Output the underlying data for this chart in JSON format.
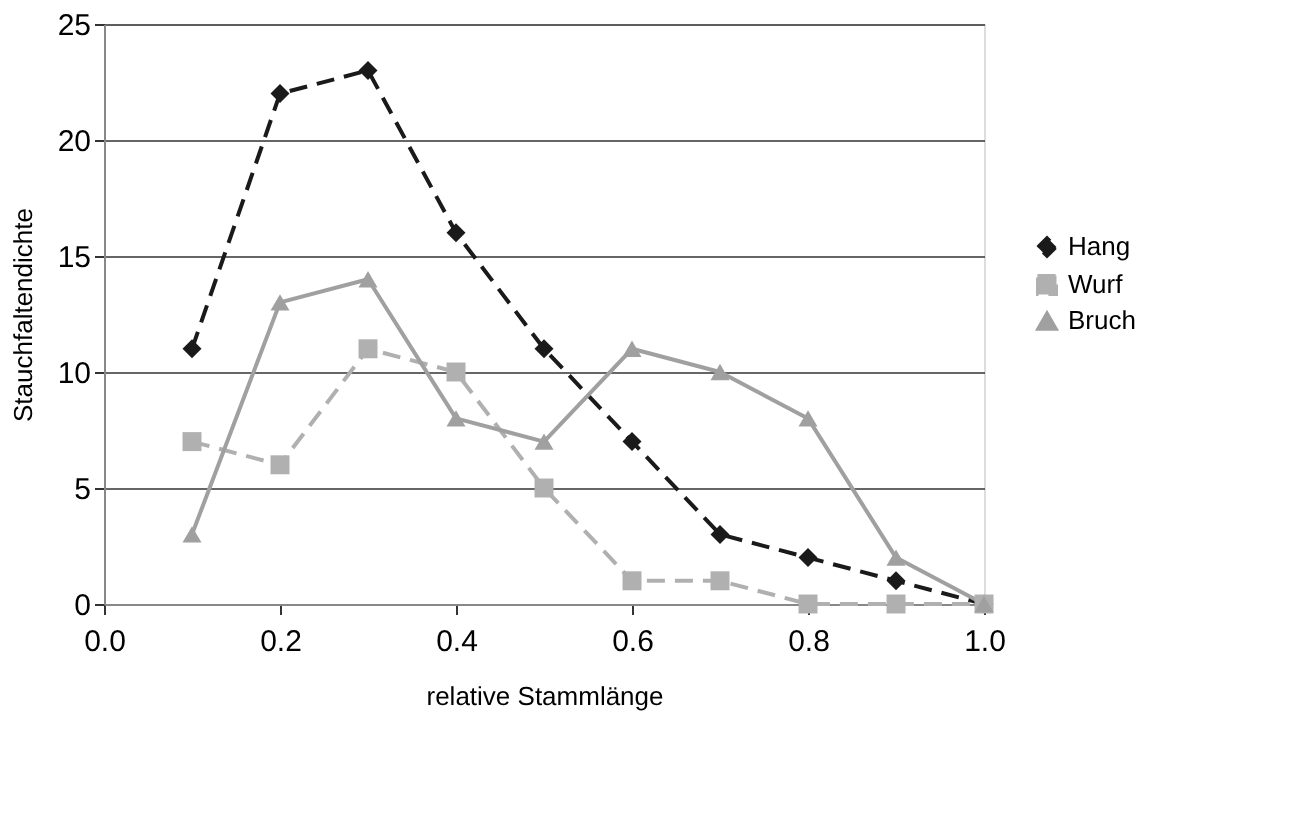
{
  "chart_data": {
    "type": "line",
    "xlabel": "relative Stammlänge",
    "ylabel": "Stauchfaltendichte",
    "x": [
      0.1,
      0.2,
      0.3,
      0.4,
      0.5,
      0.6,
      0.7,
      0.8,
      0.9,
      1.0
    ],
    "xlim": [
      0,
      1
    ],
    "xticks": [
      {
        "value": 0,
        "label": "0.0"
      },
      0.2,
      0.4,
      0.6,
      0.8,
      {
        "value": 1,
        "label": "1.0"
      }
    ],
    "ylim": [
      0,
      25
    ],
    "yticks": [
      0,
      5,
      10,
      15,
      20,
      25
    ],
    "grid": "y",
    "legend": "right",
    "series": [
      {
        "name": "Hang",
        "color": "#1a1a1a",
        "marker": "diamond",
        "line_style": "dashed",
        "values": [
          11,
          22,
          23,
          16,
          11,
          7,
          3,
          2,
          1,
          0
        ]
      },
      {
        "name": "Wurf",
        "color": "#b0b0b0",
        "marker": "square",
        "line_style": "dashed",
        "values": [
          7,
          6,
          11,
          10,
          5,
          1,
          1,
          0,
          0,
          0
        ]
      },
      {
        "name": "Bruch",
        "color": "#a0a0a0",
        "marker": "triangle",
        "line_style": "solid",
        "values": [
          3,
          13,
          14,
          8,
          7,
          11,
          10,
          8,
          2,
          0
        ]
      }
    ]
  }
}
